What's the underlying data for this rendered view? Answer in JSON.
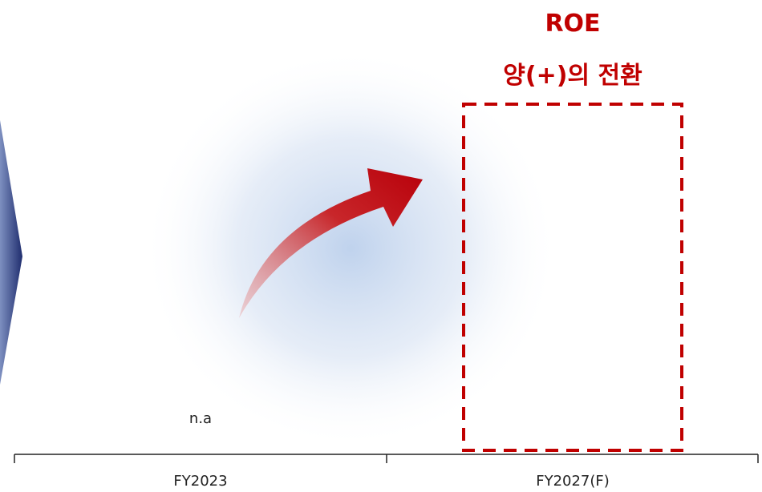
{
  "header": {
    "title": "ROE",
    "subtitle": "양(+)의 전환"
  },
  "note": "n.a",
  "categories": [
    "FY2023",
    "FY2027(F)"
  ]
}
